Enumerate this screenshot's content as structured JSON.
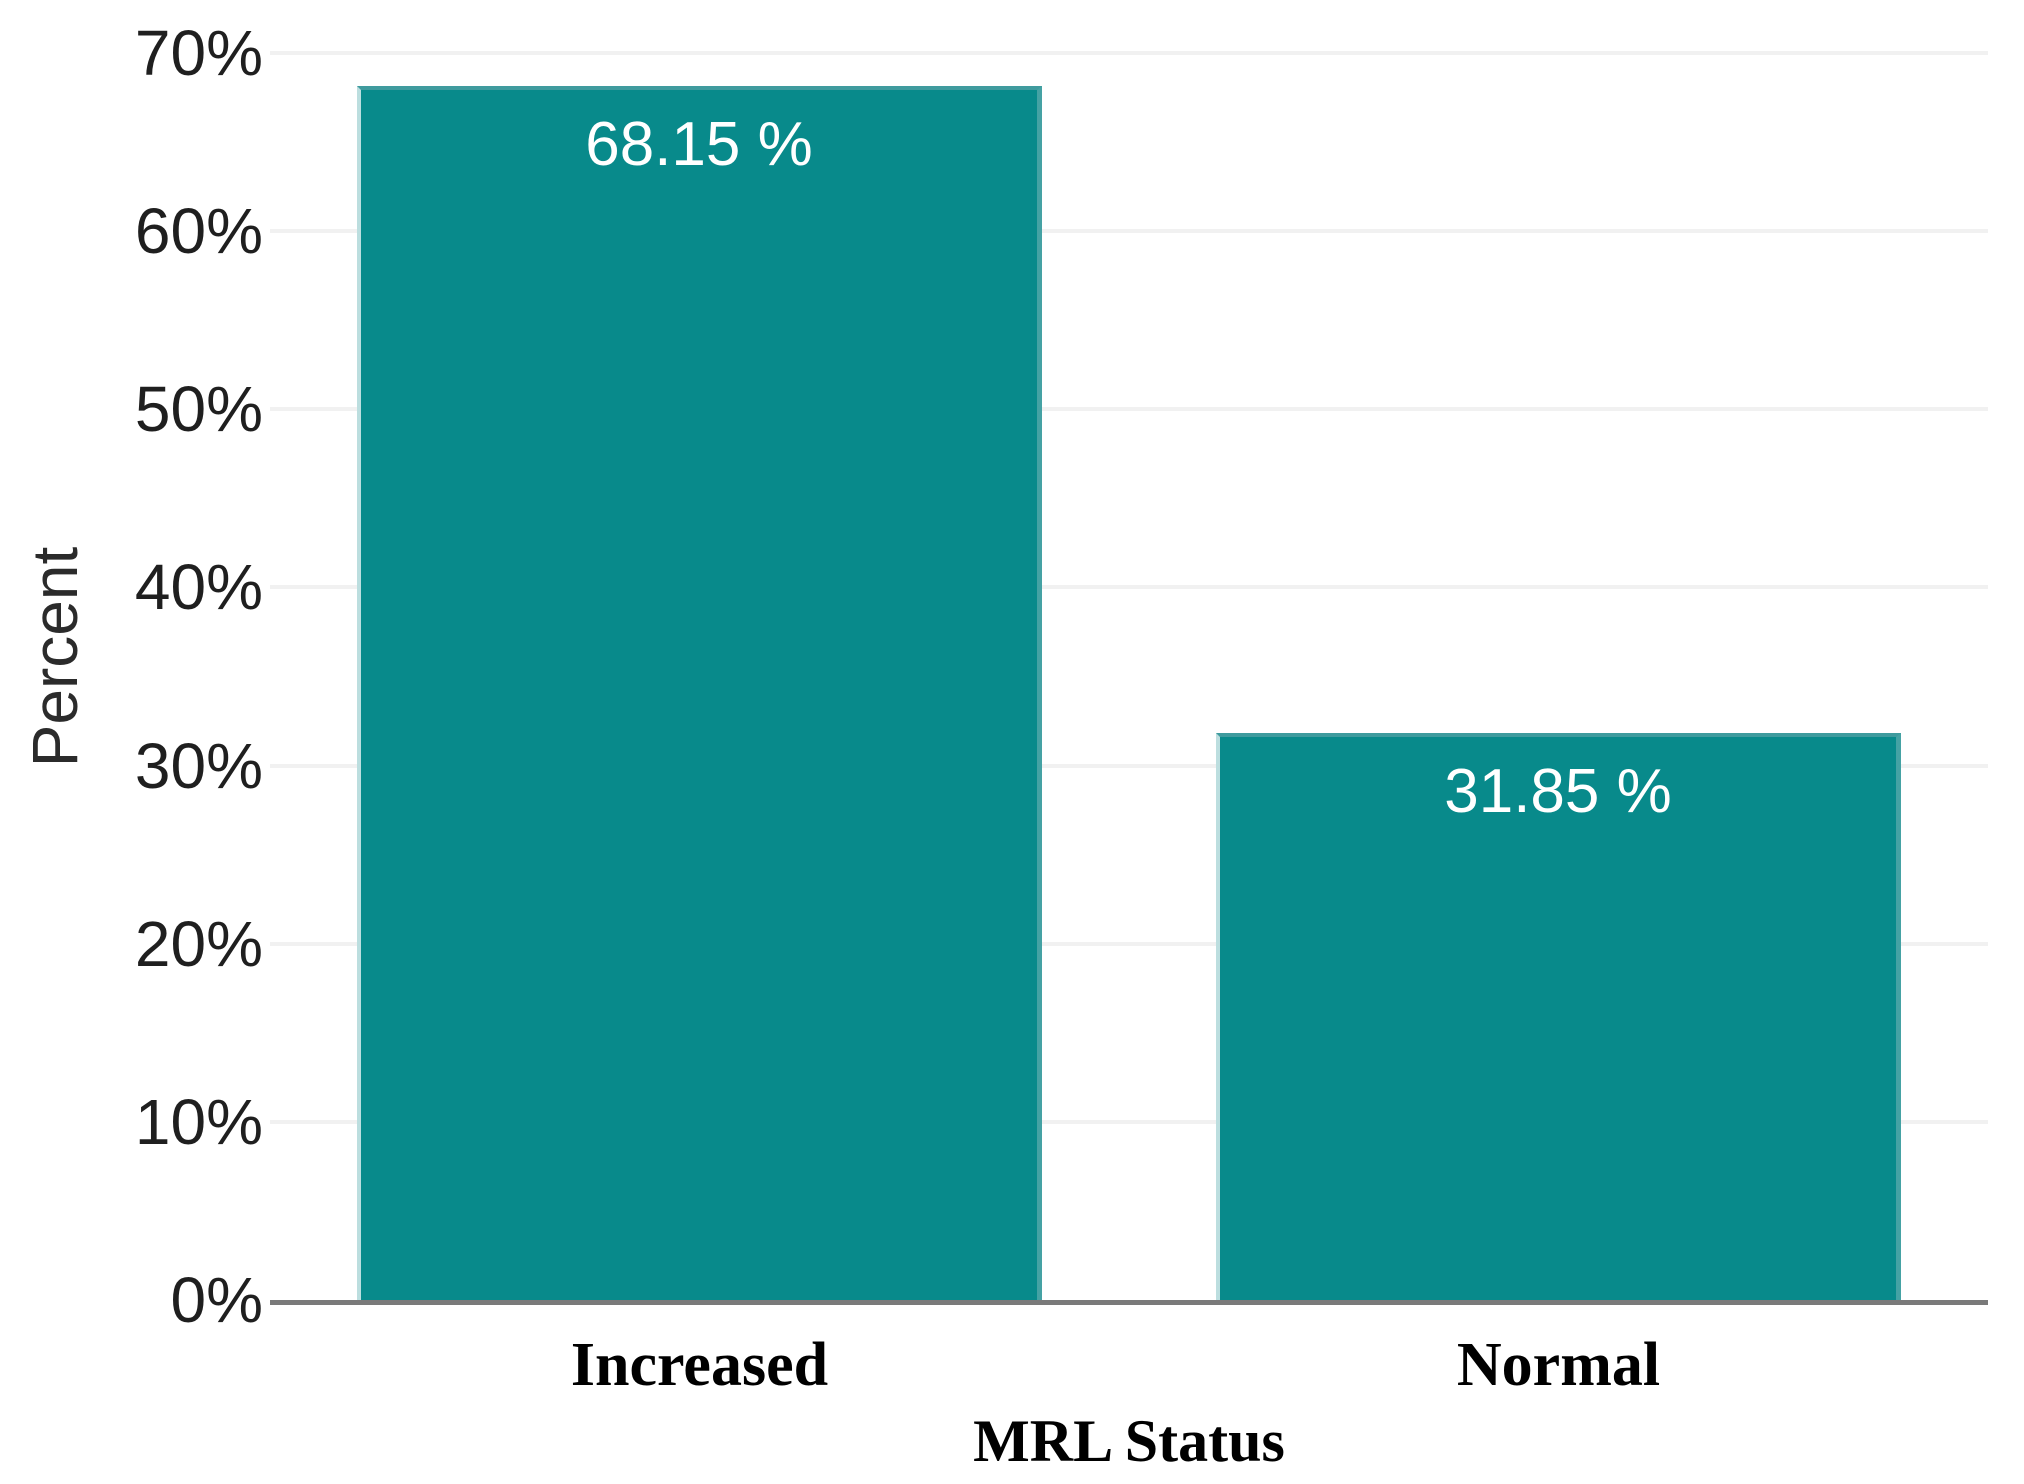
{
  "chart_data": {
    "type": "bar",
    "categories": [
      "Increased",
      "Normal"
    ],
    "values": [
      68.15,
      31.85
    ],
    "value_labels": [
      "68.15 %",
      "31.85 %"
    ],
    "xlabel": "MRL Status",
    "ylabel": "Percent",
    "ylim": [
      0,
      70
    ],
    "ytick_step": 10,
    "ytick_labels": [
      "0%",
      "10%",
      "20%",
      "30%",
      "40%",
      "50%",
      "60%",
      "70%"
    ],
    "grid": "horizontal-light",
    "legend": "none",
    "bar_color": "#088a8b",
    "bar_edge_color": "#bcdedf",
    "value_label_color": "#ffffff",
    "gridline_color": "#f1f1f1",
    "axis_line_color": "#7a7a7a",
    "tick_text_color": "#1f1f1f"
  }
}
